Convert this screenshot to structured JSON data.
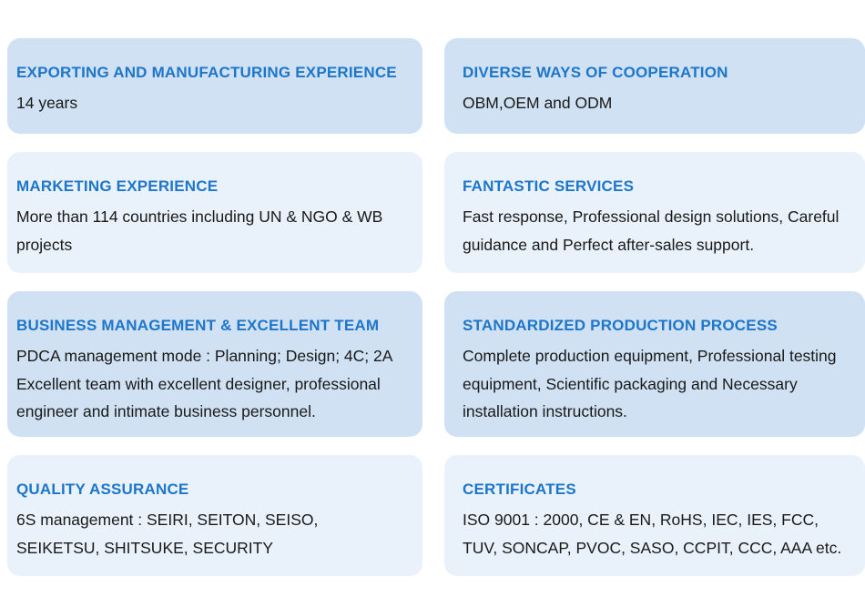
{
  "accent_color": "#1d76c9",
  "body_text_color": "#191919",
  "page_background": "#ffffff",
  "card_colors": {
    "dark": "#cfe1f3",
    "light": "#e9f1fa"
  },
  "cards": [
    {
      "title": "EXPORTING AND MANUFACTURING EXPERIENCE",
      "body": "14 years",
      "shade": "dark"
    },
    {
      "title": "DIVERSE WAYS OF COOPERATION",
      "body": "OBM,OEM and ODM",
      "shade": "dark"
    },
    {
      "title": "MARKETING EXPERIENCE",
      "body": "More than 114 countries including UN & NGO & WB\nprojects",
      "shade": "light"
    },
    {
      "title": "FANTASTIC SERVICES",
      "body": "Fast response, Professional design solutions, Careful\nguidance and Perfect after-sales support.",
      "shade": "light"
    },
    {
      "title": "BUSINESS MANAGEMENT & EXCELLENT TEAM",
      "body": "PDCA management mode : Planning; Design; 4C; 2A\nExcellent team with excellent designer, professional\nengineer and intimate business personnel.",
      "shade": "dark"
    },
    {
      "title": "STANDARDIZED PRODUCTION PROCESS",
      "body": "Complete production equipment, Professional testing\nequipment, Scientific packaging and Necessary\ninstallation instructions.",
      "shade": "dark"
    },
    {
      "title": "QUALITY ASSURANCE",
      "body": "6S management : SEIRI, SEITON, SEISO,\nSEIKETSU, SHITSUKE, SECURITY",
      "shade": "light"
    },
    {
      "title": "CERTIFICATES",
      "body": "ISO 9001 : 2000, CE & EN, RoHS, IEC, IES, FCC,\nTUV, SONCAP, PVOC, SASO, CCPIT, CCC, AAA etc.",
      "shade": "light"
    }
  ]
}
